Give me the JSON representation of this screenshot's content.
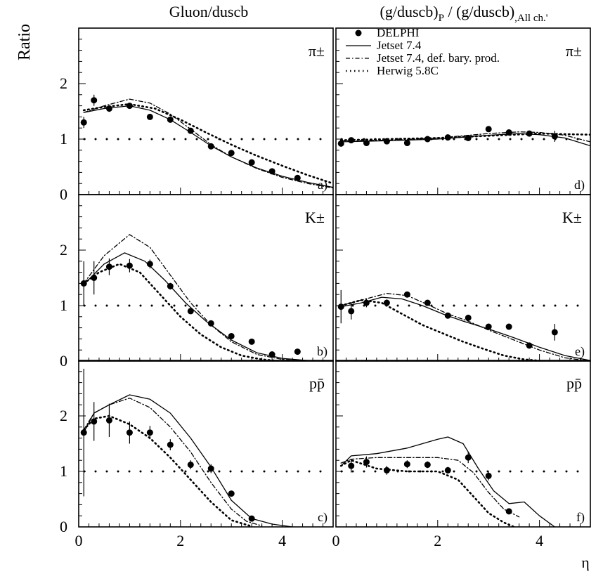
{
  "figure": {
    "ylabel": "Ratio",
    "xlabel": "η",
    "column_titles": [
      "Gluon/duscb",
      "(g/duscb)_P / (g/duscb)_'All ch.'"
    ],
    "x_ticks": [
      "0",
      "2",
      "4"
    ],
    "y_ticks": [
      "0",
      "1",
      "2"
    ]
  },
  "legend": {
    "placement": "top of upper-right panel",
    "entries": [
      {
        "label": "DELPHI",
        "style": "marker"
      },
      {
        "label": "Jetset 7.4",
        "style": "solid"
      },
      {
        "label": "Jetset 7.4, def. bary. prod.",
        "style": "dashdot"
      },
      {
        "label": "Herwig 5.8C",
        "style": "dotted"
      }
    ]
  },
  "chart_data": [
    {
      "type": "scatter",
      "panel": "a)",
      "particle": "π±",
      "column": "Gluon/duscb",
      "xlim": [
        0,
        5
      ],
      "ylim": [
        0,
        3
      ],
      "reference_line": 1,
      "points": {
        "x": [
          0.1,
          0.3,
          0.6,
          1.0,
          1.4,
          1.8,
          2.2,
          2.6,
          3.0,
          3.4,
          3.8,
          4.3
        ],
        "y": [
          1.3,
          1.7,
          1.55,
          1.6,
          1.4,
          1.35,
          1.15,
          0.87,
          0.75,
          0.58,
          0.42,
          0.3
        ],
        "err": [
          0.1,
          0.1,
          0.06,
          0.05,
          0.05,
          0.05,
          0.05,
          0.04,
          0.04,
          0.04,
          0.04,
          0.04
        ]
      },
      "series": [
        {
          "name": "Jetset 7.4",
          "x": [
            0.1,
            0.5,
            1.0,
            1.4,
            1.8,
            2.2,
            2.6,
            3.0,
            3.5,
            4.0,
            4.5,
            5.0
          ],
          "y": [
            1.48,
            1.55,
            1.6,
            1.52,
            1.35,
            1.12,
            0.88,
            0.68,
            0.48,
            0.33,
            0.22,
            0.13
          ]
        },
        {
          "name": "Jetset 7.4, def. bary. prod.",
          "x": [
            0.1,
            0.5,
            1.0,
            1.4,
            1.8,
            2.2,
            2.6,
            3.0,
            3.5,
            4.0,
            4.5,
            5.0
          ],
          "y": [
            1.48,
            1.6,
            1.72,
            1.65,
            1.45,
            1.18,
            0.9,
            0.68,
            0.47,
            0.31,
            0.2,
            0.12
          ]
        },
        {
          "name": "Herwig 5.8C",
          "x": [
            0.1,
            0.5,
            1.0,
            1.5,
            2.0,
            2.5,
            3.0,
            3.5,
            4.0,
            4.5,
            5.0
          ],
          "y": [
            1.52,
            1.58,
            1.63,
            1.55,
            1.35,
            1.12,
            0.9,
            0.7,
            0.52,
            0.35,
            0.2
          ]
        }
      ]
    },
    {
      "type": "scatter",
      "panel": "b)",
      "particle": "K±",
      "column": "Gluon/duscb",
      "xlim": [
        0,
        5
      ],
      "ylim": [
        0,
        3
      ],
      "reference_line": 1,
      "points": {
        "x": [
          0.1,
          0.3,
          0.6,
          1.0,
          1.4,
          1.8,
          2.2,
          2.6,
          3.0,
          3.4,
          3.8,
          4.3
        ],
        "y": [
          1.4,
          1.5,
          1.7,
          1.72,
          1.75,
          1.35,
          0.9,
          0.68,
          0.45,
          0.35,
          0.12,
          0.17
        ],
        "err": [
          0.4,
          0.3,
          0.15,
          0.12,
          0.08,
          0.06,
          0.05,
          0.04,
          0.04,
          0.04,
          0.03,
          0.03
        ]
      },
      "series": [
        {
          "name": "Jetset 7.4",
          "x": [
            0.1,
            0.5,
            0.9,
            1.3,
            1.7,
            2.1,
            2.5,
            3.0,
            3.5,
            4.0,
            4.5
          ],
          "y": [
            1.38,
            1.75,
            1.95,
            1.8,
            1.45,
            1.05,
            0.72,
            0.38,
            0.15,
            0.05,
            0.01
          ]
        },
        {
          "name": "Jetset 7.4, def. bary. prod.",
          "x": [
            0.1,
            0.5,
            1.0,
            1.4,
            1.8,
            2.2,
            2.6,
            3.0,
            3.5,
            4.0,
            4.5
          ],
          "y": [
            1.4,
            1.9,
            2.28,
            2.05,
            1.55,
            1.05,
            0.65,
            0.35,
            0.12,
            0.03,
            0.0
          ]
        },
        {
          "name": "Herwig 5.8C",
          "x": [
            0.1,
            0.4,
            0.8,
            1.2,
            1.6,
            2.0,
            2.4,
            2.8,
            3.2,
            3.6,
            4.0
          ],
          "y": [
            1.4,
            1.6,
            1.75,
            1.6,
            1.2,
            0.8,
            0.48,
            0.25,
            0.1,
            0.03,
            0.0
          ]
        }
      ]
    },
    {
      "type": "scatter",
      "panel": "c)",
      "particle": "pp̄",
      "column": "Gluon/duscb",
      "xlim": [
        0,
        5
      ],
      "ylim": [
        0,
        3
      ],
      "reference_line": 1,
      "points": {
        "x": [
          0.1,
          0.3,
          0.6,
          1.0,
          1.4,
          1.8,
          2.2,
          2.6,
          3.0,
          3.4
        ],
        "y": [
          1.7,
          1.9,
          1.92,
          1.7,
          1.7,
          1.48,
          1.12,
          1.05,
          0.6,
          0.15
        ],
        "err": [
          1.15,
          0.35,
          0.3,
          0.2,
          0.12,
          0.1,
          0.08,
          0.08,
          0.05,
          0.03
        ]
      },
      "series": [
        {
          "name": "Jetset 7.4",
          "x": [
            0.1,
            0.3,
            0.6,
            1.0,
            1.4,
            1.8,
            2.2,
            2.6,
            3.0,
            3.4,
            3.8,
            4.2
          ],
          "y": [
            1.7,
            2.05,
            2.2,
            2.38,
            2.3,
            2.05,
            1.6,
            1.08,
            0.48,
            0.15,
            0.05,
            0.0
          ]
        },
        {
          "name": "Jetset 7.4, def. bary. prod.",
          "x": [
            0.1,
            0.3,
            0.6,
            1.0,
            1.4,
            1.8,
            2.2,
            2.6,
            3.0,
            3.3,
            3.6
          ],
          "y": [
            1.75,
            2.05,
            2.2,
            2.32,
            2.15,
            1.8,
            1.35,
            0.8,
            0.32,
            0.1,
            0.02
          ]
        },
        {
          "name": "Herwig 5.8C",
          "x": [
            0.1,
            0.3,
            0.6,
            1.0,
            1.4,
            1.8,
            2.2,
            2.6,
            3.0,
            3.4
          ],
          "y": [
            1.75,
            1.95,
            2.0,
            1.85,
            1.6,
            1.25,
            0.85,
            0.45,
            0.12,
            0.01
          ]
        }
      ]
    },
    {
      "type": "scatter",
      "panel": "d)",
      "particle": "π±",
      "column": "(g/duscb)_P / (g/duscb)_'All ch.'",
      "xlim": [
        0,
        5
      ],
      "ylim": [
        0,
        3
      ],
      "reference_line": 1,
      "points": {
        "x": [
          0.1,
          0.3,
          0.6,
          1.0,
          1.4,
          1.8,
          2.2,
          2.6,
          3.0,
          3.4,
          3.8,
          4.3
        ],
        "y": [
          0.92,
          0.98,
          0.93,
          0.96,
          0.93,
          1.0,
          1.03,
          1.02,
          1.18,
          1.12,
          1.1,
          1.05
        ],
        "err": [
          0.05,
          0.05,
          0.03,
          0.03,
          0.03,
          0.03,
          0.03,
          0.03,
          0.03,
          0.03,
          0.05,
          0.1
        ]
      },
      "series": [
        {
          "name": "Jetset 7.4",
          "x": [
            0.1,
            1.0,
            2.0,
            3.0,
            3.6,
            4.0,
            4.5,
            5.0
          ],
          "y": [
            0.95,
            0.97,
            1.0,
            1.07,
            1.1,
            1.08,
            1.02,
            0.88
          ]
        },
        {
          "name": "Jetset 7.4, def. bary. prod.",
          "x": [
            0.1,
            1.0,
            2.0,
            3.0,
            3.6,
            4.0,
            4.5,
            5.0
          ],
          "y": [
            0.97,
            0.98,
            1.02,
            1.1,
            1.13,
            1.12,
            1.07,
            0.95
          ]
        },
        {
          "name": "Herwig 5.8C",
          "x": [
            0.1,
            1.0,
            2.0,
            3.0,
            4.0,
            5.0
          ],
          "y": [
            0.98,
            1.0,
            1.02,
            1.06,
            1.1,
            1.08
          ]
        }
      ]
    },
    {
      "type": "scatter",
      "panel": "e)",
      "particle": "K±",
      "column": "(g/duscb)_P / (g/duscb)_'All ch.'",
      "xlim": [
        0,
        5
      ],
      "ylim": [
        0,
        3
      ],
      "reference_line": 1,
      "points": {
        "x": [
          0.1,
          0.3,
          0.6,
          1.0,
          1.4,
          1.8,
          2.2,
          2.6,
          3.0,
          3.4,
          3.8,
          4.3
        ],
        "y": [
          0.98,
          0.9,
          1.05,
          1.05,
          1.2,
          1.05,
          0.82,
          0.78,
          0.62,
          0.62,
          0.28,
          0.52
        ],
        "err": [
          0.3,
          0.15,
          0.08,
          0.06,
          0.05,
          0.04,
          0.04,
          0.04,
          0.04,
          0.04,
          0.05,
          0.15
        ]
      },
      "series": [
        {
          "name": "Jetset 7.4",
          "x": [
            0.1,
            0.5,
            0.9,
            1.3,
            1.7,
            2.1,
            2.5,
            3.0,
            3.5,
            4.0,
            4.5,
            5.0
          ],
          "y": [
            0.98,
            1.05,
            1.15,
            1.12,
            1.0,
            0.85,
            0.72,
            0.58,
            0.42,
            0.25,
            0.1,
            0.01
          ]
        },
        {
          "name": "Jetset 7.4, def. bary. prod.",
          "x": [
            0.1,
            0.5,
            1.0,
            1.4,
            1.8,
            2.2,
            2.6,
            3.0,
            3.5,
            4.0,
            4.5,
            5.0
          ],
          "y": [
            1.0,
            1.1,
            1.22,
            1.18,
            1.02,
            0.85,
            0.72,
            0.56,
            0.38,
            0.2,
            0.06,
            0.0
          ]
        },
        {
          "name": "Herwig 5.8C",
          "x": [
            0.1,
            0.5,
            0.9,
            1.3,
            1.7,
            2.1,
            2.5,
            2.9,
            3.3,
            3.7,
            4.1
          ],
          "y": [
            1.0,
            1.1,
            1.05,
            0.85,
            0.65,
            0.5,
            0.35,
            0.22,
            0.1,
            0.03,
            0.0
          ]
        }
      ]
    },
    {
      "type": "scatter",
      "panel": "f)",
      "particle": "pp̄",
      "column": "(g/duscb)_P / (g/duscb)_'All ch.'",
      "xlim": [
        0,
        5
      ],
      "ylim": [
        0,
        3
      ],
      "reference_line": 1,
      "points": {
        "x": [
          0.3,
          0.6,
          1.0,
          1.4,
          1.8,
          2.2,
          2.6,
          3.0,
          3.4
        ],
        "y": [
          1.1,
          1.17,
          1.02,
          1.13,
          1.12,
          1.02,
          1.25,
          0.92,
          0.28
        ],
        "err": [
          0.12,
          0.1,
          0.08,
          0.07,
          0.06,
          0.06,
          0.1,
          0.08,
          0.05
        ]
      },
      "series": [
        {
          "name": "Jetset 7.4",
          "x": [
            0.1,
            0.3,
            0.8,
            1.4,
            2.0,
            2.2,
            2.5,
            2.8,
            3.1,
            3.4,
            3.7,
            4.0,
            4.3
          ],
          "y": [
            1.1,
            1.28,
            1.32,
            1.42,
            1.58,
            1.62,
            1.5,
            1.05,
            0.65,
            0.42,
            0.45,
            0.2,
            0.0
          ]
        },
        {
          "name": "Jetset 7.4, def. bary. prod.",
          "x": [
            0.1,
            0.3,
            0.8,
            1.4,
            2.0,
            2.4,
            2.7,
            3.0,
            3.3,
            3.6
          ],
          "y": [
            1.15,
            1.22,
            1.25,
            1.25,
            1.25,
            1.2,
            0.98,
            0.62,
            0.32,
            0.18
          ]
        },
        {
          "name": "Herwig 5.8C",
          "x": [
            0.1,
            0.3,
            0.8,
            1.4,
            2.0,
            2.4,
            2.7,
            3.0,
            3.3,
            3.5
          ],
          "y": [
            1.1,
            1.2,
            1.05,
            1.0,
            1.0,
            0.85,
            0.55,
            0.25,
            0.08,
            0.0
          ]
        }
      ]
    }
  ]
}
